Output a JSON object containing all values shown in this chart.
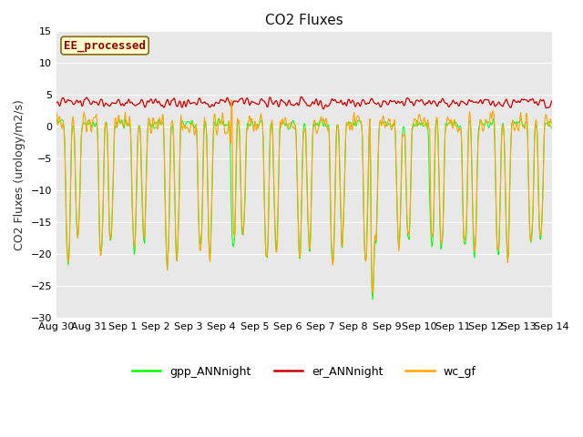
{
  "title": "CO2 Fluxes",
  "ylabel": "CO2 Fluxes (urology/m2/s)",
  "xlabel": "",
  "ylim": [
    -30,
    15
  ],
  "yticks": [
    -30,
    -25,
    -20,
    -15,
    -10,
    -5,
    0,
    5,
    10,
    15
  ],
  "plot_bg_color": "#e8e8e8",
  "gpp_color": "#00ff00",
  "er_color": "#cc0000",
  "wc_color": "#ffa500",
  "legend_labels": [
    "gpp_ANNnight",
    "er_ANNnight",
    "wc_gf"
  ],
  "annotation_text": "EE_processed",
  "annotation_color": "#8b0000",
  "annotation_bg": "#ffffcc",
  "title_fontsize": 11,
  "axis_fontsize": 9,
  "tick_fontsize": 8,
  "n_days": 15,
  "xticklabels": [
    "Aug 30",
    "Aug 31",
    "Sep 1",
    "Sep 2",
    "Sep 3",
    "Sep 4",
    "Sep 5",
    "Sep 6",
    "Sep 7",
    "Sep 8",
    "Sep 9",
    "Sep 10",
    "Sep 11",
    "Sep 12",
    "Sep 13",
    "Sep 14"
  ]
}
